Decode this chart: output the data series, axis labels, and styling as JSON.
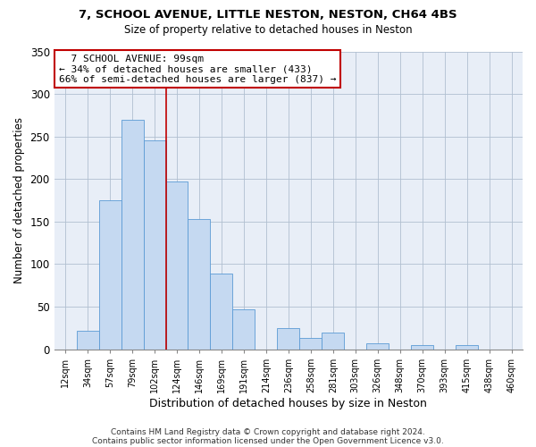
{
  "title": "7, SCHOOL AVENUE, LITTLE NESTON, NESTON, CH64 4BS",
  "subtitle": "Size of property relative to detached houses in Neston",
  "xlabel": "Distribution of detached houses by size in Neston",
  "ylabel": "Number of detached properties",
  "bar_labels": [
    "12sqm",
    "34sqm",
    "57sqm",
    "79sqm",
    "102sqm",
    "124sqm",
    "146sqm",
    "169sqm",
    "191sqm",
    "214sqm",
    "236sqm",
    "258sqm",
    "281sqm",
    "303sqm",
    "326sqm",
    "348sqm",
    "370sqm",
    "393sqm",
    "415sqm",
    "438sqm",
    "460sqm"
  ],
  "bar_values": [
    0,
    22,
    175,
    270,
    245,
    197,
    153,
    89,
    47,
    0,
    25,
    13,
    20,
    0,
    7,
    0,
    5,
    0,
    5,
    0,
    0
  ],
  "bar_color": "#c5d9f1",
  "bar_edge_color": "#5b9bd5",
  "vline_color": "#c00000",
  "annotation_title": "7 SCHOOL AVENUE: 99sqm",
  "annotation_line1": "← 34% of detached houses are smaller (433)",
  "annotation_line2": "66% of semi-detached houses are larger (837) →",
  "annotation_box_color": "#ffffff",
  "annotation_box_edge": "#c00000",
  "ylim": [
    0,
    350
  ],
  "yticks": [
    0,
    50,
    100,
    150,
    200,
    250,
    300,
    350
  ],
  "footer1": "Contains HM Land Registry data © Crown copyright and database right 2024.",
  "footer2": "Contains public sector information licensed under the Open Government Licence v3.0.",
  "bg_color": "#e8eef7"
}
